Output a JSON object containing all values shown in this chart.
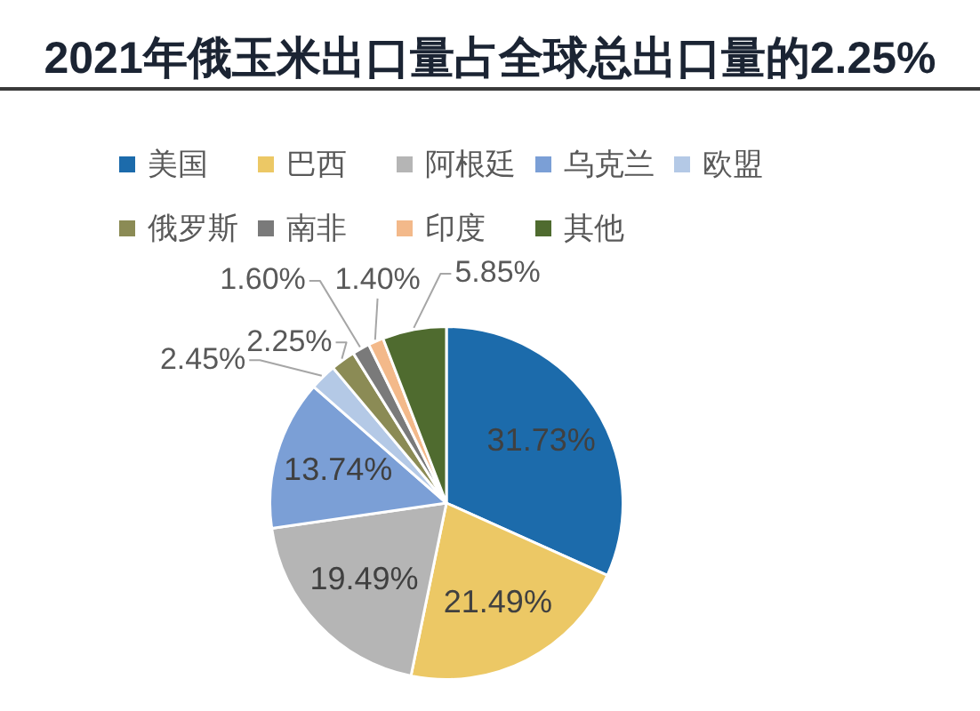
{
  "chart_data": {
    "type": "pie",
    "title": "2021年俄玉米出口量占全球总出口量的2.25%",
    "categories": [
      "美国",
      "巴西",
      "阿根廷",
      "乌克兰",
      "欧盟",
      "俄罗斯",
      "南非",
      "印度",
      "其他"
    ],
    "values": [
      31.73,
      21.49,
      19.49,
      13.74,
      2.45,
      2.25,
      1.6,
      1.4,
      5.85
    ],
    "value_labels": [
      "31.73%",
      "21.49%",
      "19.49%",
      "13.74%",
      "2.45%",
      "2.25%",
      "1.60%",
      "1.40%",
      "5.85%"
    ],
    "colors": [
      "#1c6bab",
      "#ecc865",
      "#b5b5b5",
      "#7b9fd6",
      "#b4c9e6",
      "#8b8b55",
      "#7a7a7a",
      "#f3b98a",
      "#4f6b2f"
    ],
    "legend": "top"
  }
}
